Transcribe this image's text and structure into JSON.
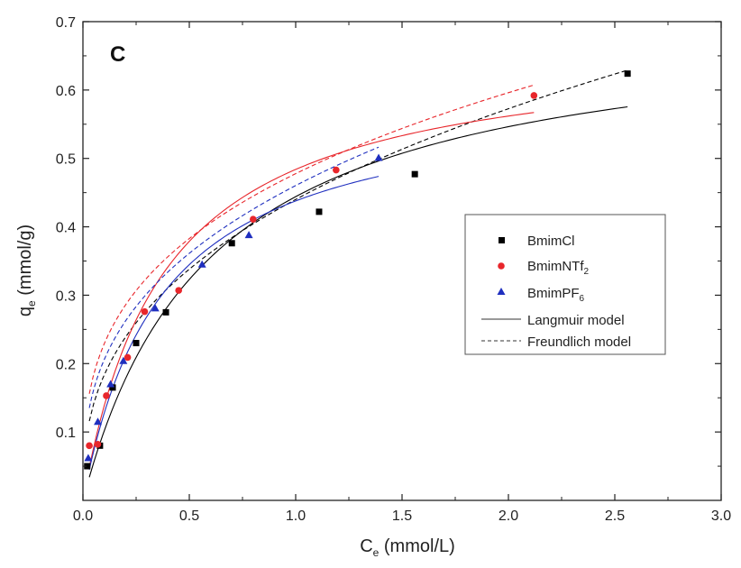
{
  "chart_data": {
    "type": "scatter",
    "panel_label": "C",
    "xlabel": "C",
    "xlabel_sub": "e",
    "xlabel_unit": " (mmol/L)",
    "ylabel": "q",
    "ylabel_sub": "e",
    "ylabel_unit": " (mmol/g)",
    "xlim": [
      0.0,
      3.0
    ],
    "ylim": [
      0.0,
      0.7
    ],
    "xticks": [
      0.0,
      0.5,
      1.0,
      1.5,
      2.0,
      2.5,
      3.0
    ],
    "xtick_labels": [
      "0.0",
      "0.5",
      "1.0",
      "1.5",
      "2.0",
      "2.5",
      "3.0"
    ],
    "yticks": [
      0.1,
      0.2,
      0.3,
      0.4,
      0.5,
      0.6,
      0.7
    ],
    "ytick_labels": [
      "0.1",
      "0.2",
      "0.3",
      "0.4",
      "0.5",
      "0.6",
      "0.7"
    ],
    "grid": false,
    "legend_position": "right",
    "series": [
      {
        "name": "BmimCl",
        "name_sub": "",
        "marker": "square",
        "color": "#000000",
        "x": [
          0.02,
          0.08,
          0.14,
          0.25,
          0.39,
          0.7,
          1.11,
          1.56,
          2.56
        ],
        "y": [
          0.05,
          0.08,
          0.165,
          0.23,
          0.275,
          0.376,
          0.422,
          0.477,
          0.624
        ],
        "langmuir": {
          "qmax": 0.71,
          "KL": 1.67,
          "xrange": [
            0.03,
            2.56
          ]
        },
        "freundlich": {
          "KF": 0.44,
          "n": 2.63,
          "xrange": [
            0.03,
            2.56
          ]
        }
      },
      {
        "name": "BmimNTf",
        "name_sub": "2",
        "marker": "circle",
        "color": "#e8262b",
        "x": [
          0.03,
          0.07,
          0.11,
          0.21,
          0.29,
          0.45,
          0.8,
          1.19,
          2.12
        ],
        "y": [
          0.08,
          0.082,
          0.153,
          0.209,
          0.276,
          0.307,
          0.411,
          0.483,
          0.592
        ],
        "langmuir": {
          "qmax": 0.67,
          "KL": 2.6,
          "xrange": [
            0.03,
            2.12
          ]
        },
        "freundlich": {
          "KF": 0.4777,
          "n": 3.13,
          "xrange": [
            0.03,
            2.12
          ]
        }
      },
      {
        "name": "BmimPF",
        "name_sub": "6",
        "marker": "triangle",
        "color": "#1f2fbf",
        "x": [
          0.025,
          0.07,
          0.13,
          0.19,
          0.34,
          0.56,
          0.78,
          1.39
        ],
        "y": [
          0.062,
          0.115,
          0.17,
          0.204,
          0.281,
          0.345,
          0.388,
          0.501
        ],
        "langmuir": {
          "qmax": 0.6,
          "KL": 2.7,
          "xrange": [
            0.03,
            1.39
          ]
        },
        "freundlich": {
          "KF": 0.4603,
          "n": 2.86,
          "xrange": [
            0.03,
            1.39
          ]
        }
      }
    ],
    "legend_lines": [
      {
        "label": "Langmuir model",
        "style": "solid"
      },
      {
        "label": "Freundlich model",
        "style": "dashed"
      }
    ]
  }
}
